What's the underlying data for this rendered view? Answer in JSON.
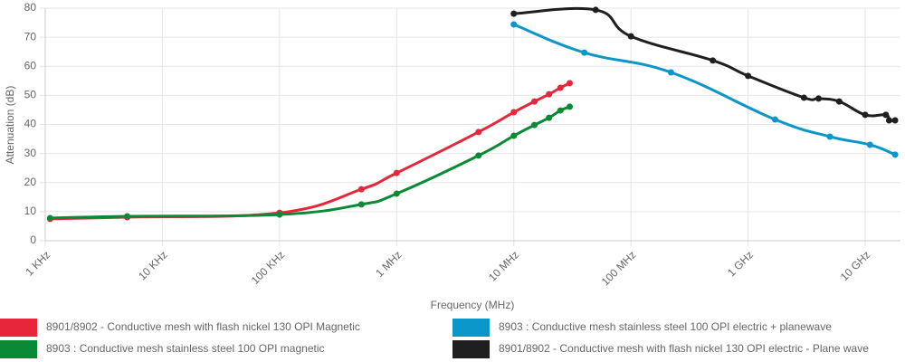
{
  "chart_data": {
    "type": "line",
    "x_label": "Frequency (MHz)",
    "y_label": "Attenuation (dB)",
    "xscale": "log",
    "grid": true,
    "xlim": [
      0.001,
      20000
    ],
    "ylim": [
      0,
      80
    ],
    "xticks": [
      {
        "value": 0.001,
        "label": "1 KHz"
      },
      {
        "value": 0.01,
        "label": "10 KHz"
      },
      {
        "value": 0.1,
        "label": "100 KHz"
      },
      {
        "value": 1,
        "label": "1 MHz"
      },
      {
        "value": 10,
        "label": "10 MHz"
      },
      {
        "value": 100,
        "label": "100 MHz"
      },
      {
        "value": 1000,
        "label": "1 GHz"
      },
      {
        "value": 10000,
        "label": "10 GHz"
      }
    ],
    "yticks": [
      0,
      10,
      20,
      30,
      40,
      50,
      60,
      70,
      80
    ],
    "series": [
      {
        "name": "8901/8902 - Conductive mesh with flash nickel 130 OPI Magnetic",
        "color": "#e8263a",
        "x": [
          0.0011,
          0.005,
          0.1,
          0.5,
          1,
          5,
          10,
          15,
          20,
          25,
          30
        ],
        "values": [
          7.5,
          8.1,
          9.6,
          17.7,
          23.3,
          37.4,
          44.2,
          47.9,
          50.4,
          52.6,
          54.2
        ]
      },
      {
        "name": "8903 : Conductive mesh stainless steel 100 OPI magnetic",
        "color": "#0b8a35",
        "x": [
          0.0011,
          0.005,
          0.1,
          0.5,
          1,
          5,
          10,
          15,
          20,
          25,
          30
        ],
        "values": [
          7.8,
          8.4,
          9.0,
          12.5,
          16.2,
          29.3,
          36.1,
          39.8,
          42.3,
          44.8,
          46.1
        ]
      },
      {
        "name": "8901/8902 - Conductive mesh with flash nickel 130 OPI electric - Plane wave",
        "color": "#1f1f1f",
        "x": [
          10,
          50,
          100,
          500,
          1000,
          3000,
          4000,
          6000,
          10000,
          15000,
          16000,
          18000
        ],
        "values": [
          78.1,
          79.4,
          70.3,
          62.0,
          56.7,
          49.2,
          48.9,
          47.9,
          43.3,
          43.3,
          41.4,
          41.4
        ]
      },
      {
        "name": "8903 : Conductive mesh stainless steel 100 OPI electric + planewave",
        "color": "#0a96c8",
        "x": [
          10,
          40,
          220,
          1700,
          5000,
          11000,
          18000
        ],
        "values": [
          74.4,
          64.7,
          57.9,
          41.7,
          35.8,
          33.0,
          29.6
        ]
      }
    ]
  }
}
